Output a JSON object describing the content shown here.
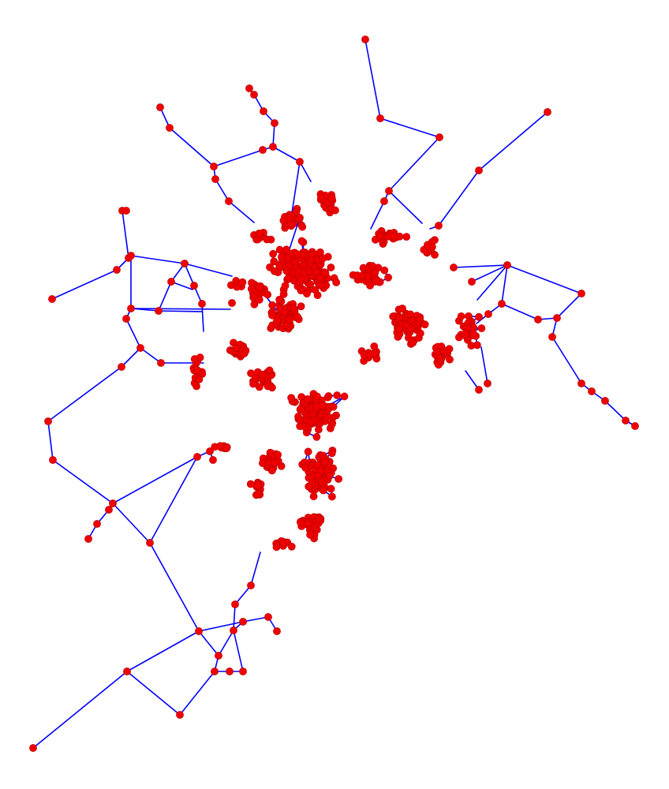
{
  "colors": {
    "background": "#ffffff",
    "edge": "#0000ff",
    "node": "#ee0000"
  },
  "graph": {
    "type": "network",
    "directed": false,
    "labels_visible": false
  }
}
